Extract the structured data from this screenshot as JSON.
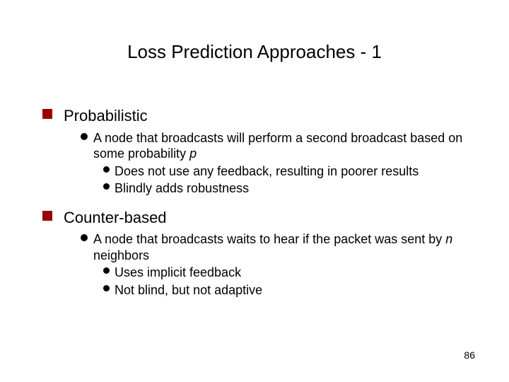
{
  "colors": {
    "square_bullet": "#990000",
    "round_bullet": "#000000",
    "text": "#000000",
    "background": "#ffffff"
  },
  "title": "Loss Prediction Approaches - 1",
  "page_number": "86",
  "section1": {
    "heading": "Probabilistic",
    "sub1_a": "A node that broadcasts will perform a second broadcast based on some probability ",
    "sub1_b": "p",
    "sub1_1": "Does not use any feedback, resulting in poorer results",
    "sub1_2": "Blindly adds robustness"
  },
  "section2": {
    "heading": "Counter-based",
    "sub1_a": "A node that broadcasts waits to hear if the packet was sent by ",
    "sub1_b": "n",
    "sub1_c": " neighbors",
    "sub1_1": "Uses implicit feedback",
    "sub1_2": "Not blind, but not adaptive"
  }
}
